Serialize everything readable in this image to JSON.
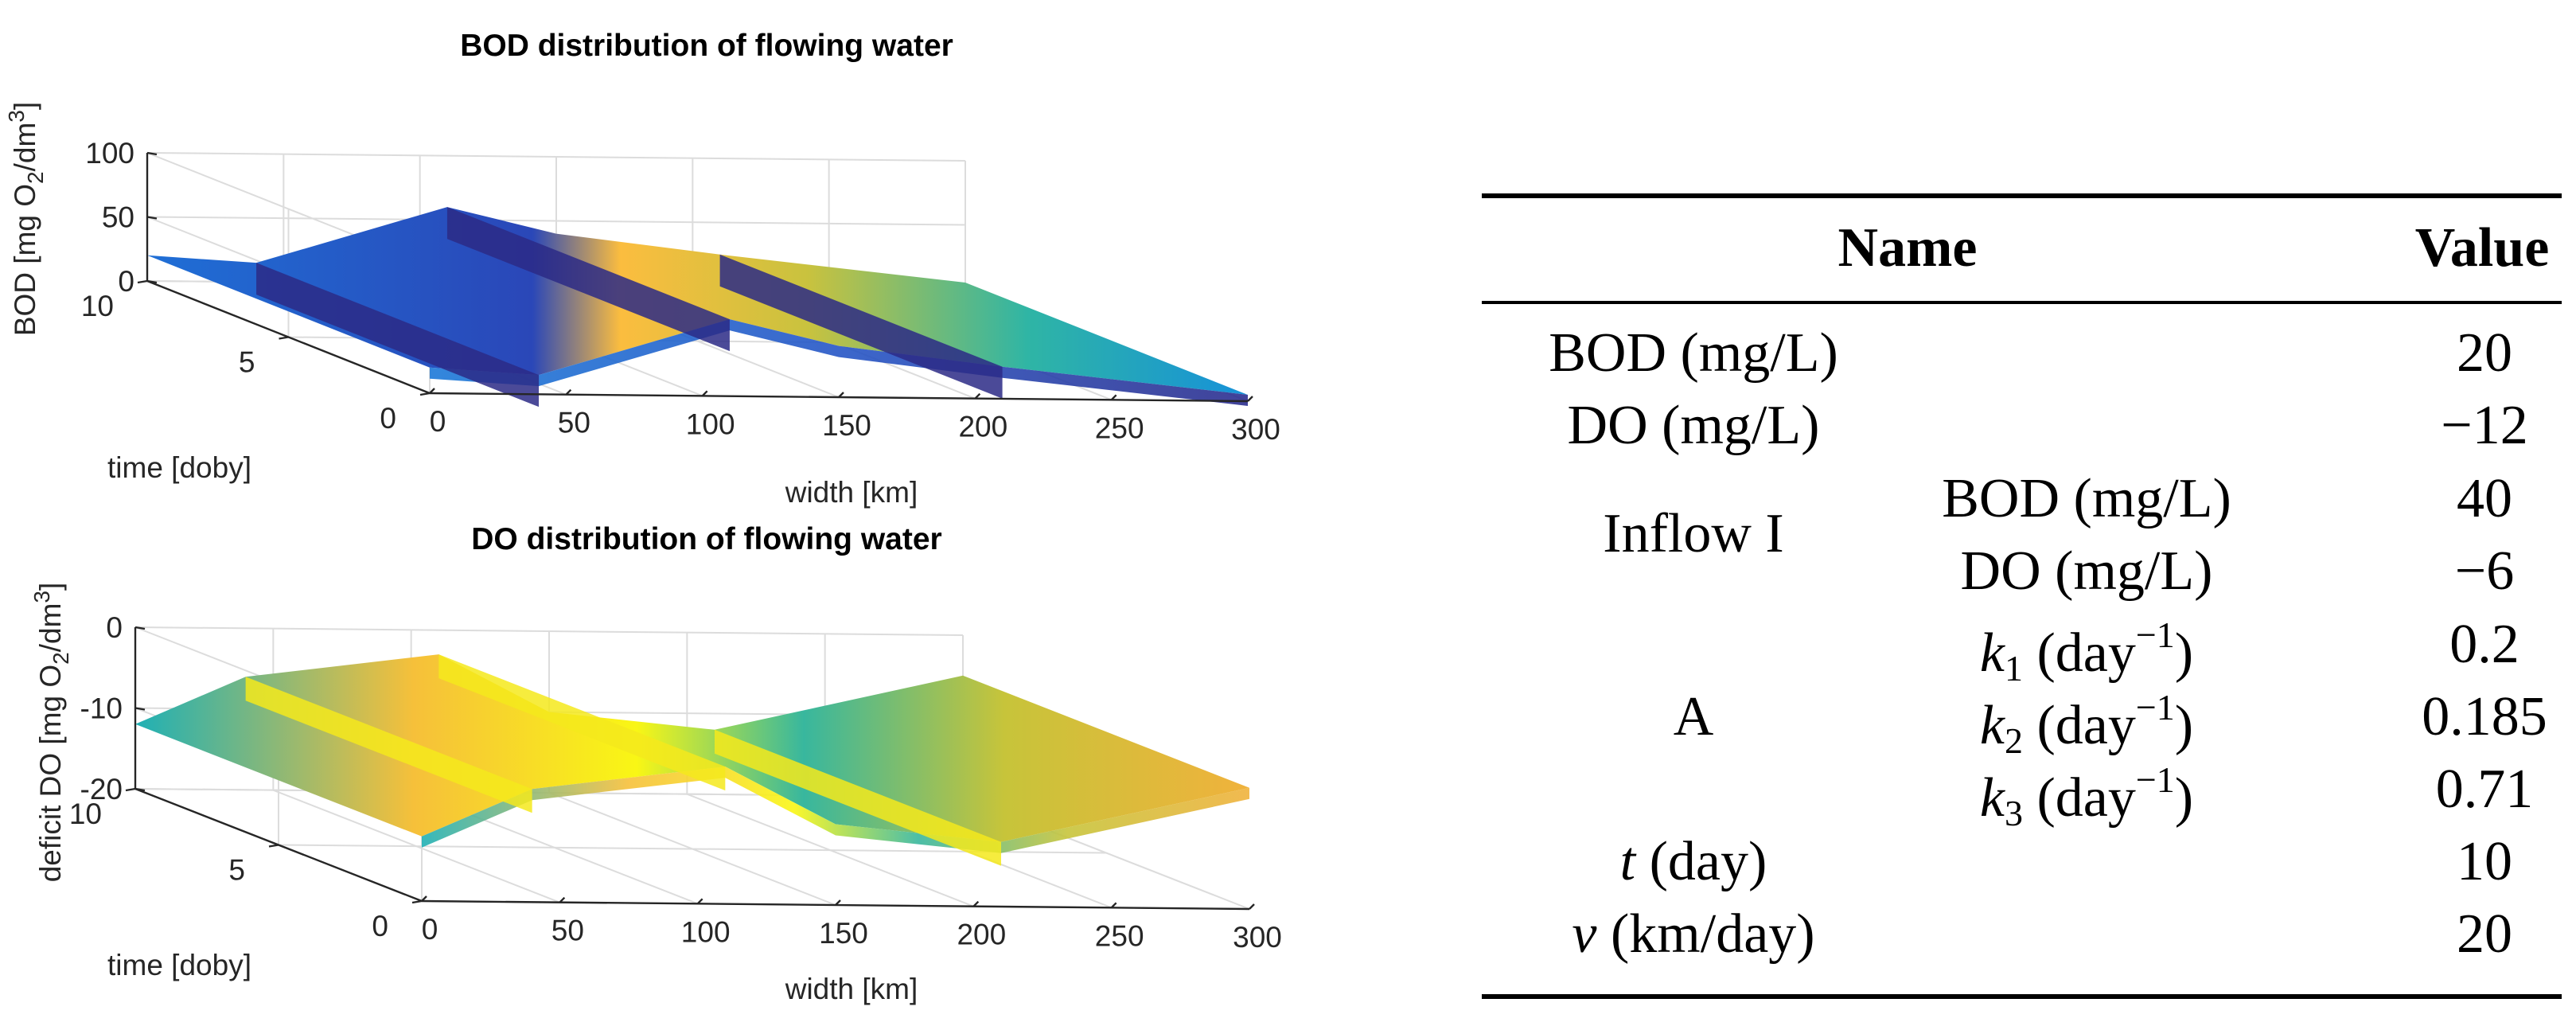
{
  "chart_data": [
    {
      "type": "surface",
      "title": "BOD distribution of flowing water",
      "xlabel": "width [km]",
      "ylabel": "time [doby]",
      "zlabel": "BOD [mg O_2/dm^3]",
      "zlabel_parts": {
        "pre": "BOD [mg O",
        "sub": "2",
        "mid": "/dm",
        "sup": "3",
        "post": "]"
      },
      "xlim": [
        0,
        300
      ],
      "ylim": [
        0,
        10
      ],
      "zlim": [
        0,
        100
      ],
      "xticks": [
        "0",
        "50",
        "100",
        "150",
        "200",
        "250",
        "300"
      ],
      "yticks": [
        "0",
        "5",
        "10"
      ],
      "zticks": [
        "0",
        "50",
        "100"
      ],
      "colormap": "parula",
      "inflow_points_km": [
        40,
        110,
        210
      ],
      "surface_profile": {
        "x": [
          0,
          40,
          110,
          150,
          210,
          300
        ],
        "z": [
          20,
          15,
          60,
          40,
          25,
          5
        ]
      }
    },
    {
      "type": "surface",
      "title": "DO distribution of flowing water",
      "xlabel": "width [km]",
      "ylabel": "time [doby]",
      "zlabel": "deficit DO [mg O_2/dm^3]",
      "zlabel_parts": {
        "pre": "deficit DO [mg O",
        "sub": "2",
        "mid": "/dm",
        "sup": "3",
        "post": "]"
      },
      "xlim": [
        0,
        300
      ],
      "ylim": [
        0,
        10
      ],
      "zlim": [
        -20,
        0
      ],
      "xticks": [
        "0",
        "50",
        "100",
        "150",
        "200",
        "250",
        "300"
      ],
      "yticks": [
        "0",
        "5",
        "10"
      ],
      "zticks": [
        "-20",
        "-10",
        "0"
      ],
      "colormap": "parula",
      "inflow_points_km": [
        40,
        110,
        210
      ],
      "surface_profile": {
        "x": [
          0,
          40,
          110,
          150,
          210,
          300
        ],
        "z": [
          -12,
          -6,
          -3,
          -10,
          -12,
          -5
        ]
      }
    }
  ],
  "table": {
    "header": {
      "name": "Name",
      "value": "Value"
    },
    "rows": {
      "bod": {
        "label": "BOD (mg/L)",
        "value": "20"
      },
      "do": {
        "label": "DO (mg/L)",
        "value": "−12"
      },
      "inflow": {
        "group": "Inflow I",
        "bod": {
          "label": "BOD (mg/L)",
          "value": "40"
        },
        "do": {
          "label": "DO (mg/L)",
          "value": "−6"
        }
      },
      "a": {
        "group": "A",
        "k1": {
          "var": "k",
          "sub": "1",
          "unit_pre": " (day",
          "sup": "−1",
          "unit_post": ")",
          "value": "0.2"
        },
        "k2": {
          "var": "k",
          "sub": "2",
          "unit_pre": " (day",
          "sup": "−1",
          "unit_post": ")",
          "value": "0.185"
        },
        "k3": {
          "var": "k",
          "sub": "3",
          "unit_pre": " (day",
          "sup": "−1",
          "unit_post": ")",
          "value": "0.71"
        }
      },
      "t": {
        "var": "t",
        "unit": " (day)",
        "value": "10"
      },
      "v": {
        "var": "v",
        "unit": " (km/day)",
        "value": "20"
      }
    }
  }
}
